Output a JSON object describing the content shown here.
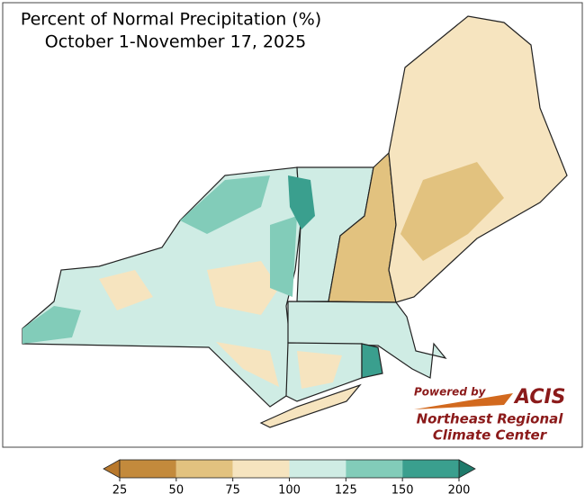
{
  "header": {
    "title": "Percent of Normal Precipitation (%)",
    "subtitle": "October 1-November 17, 2025"
  },
  "legend": {
    "ticks": [
      25,
      50,
      75,
      100,
      125,
      150,
      200
    ],
    "colors": [
      "#c38a3c",
      "#e2c27f",
      "#f6e4bf",
      "#cfece4",
      "#82ccb9",
      "#3a9f8e"
    ],
    "under_color": "#b8782c",
    "over_color": "#1f7a6b"
  },
  "logo": {
    "powered": "Powered by",
    "acis": "ACIS",
    "line1": "Northeast Regional",
    "line2": "Climate Center"
  }
}
